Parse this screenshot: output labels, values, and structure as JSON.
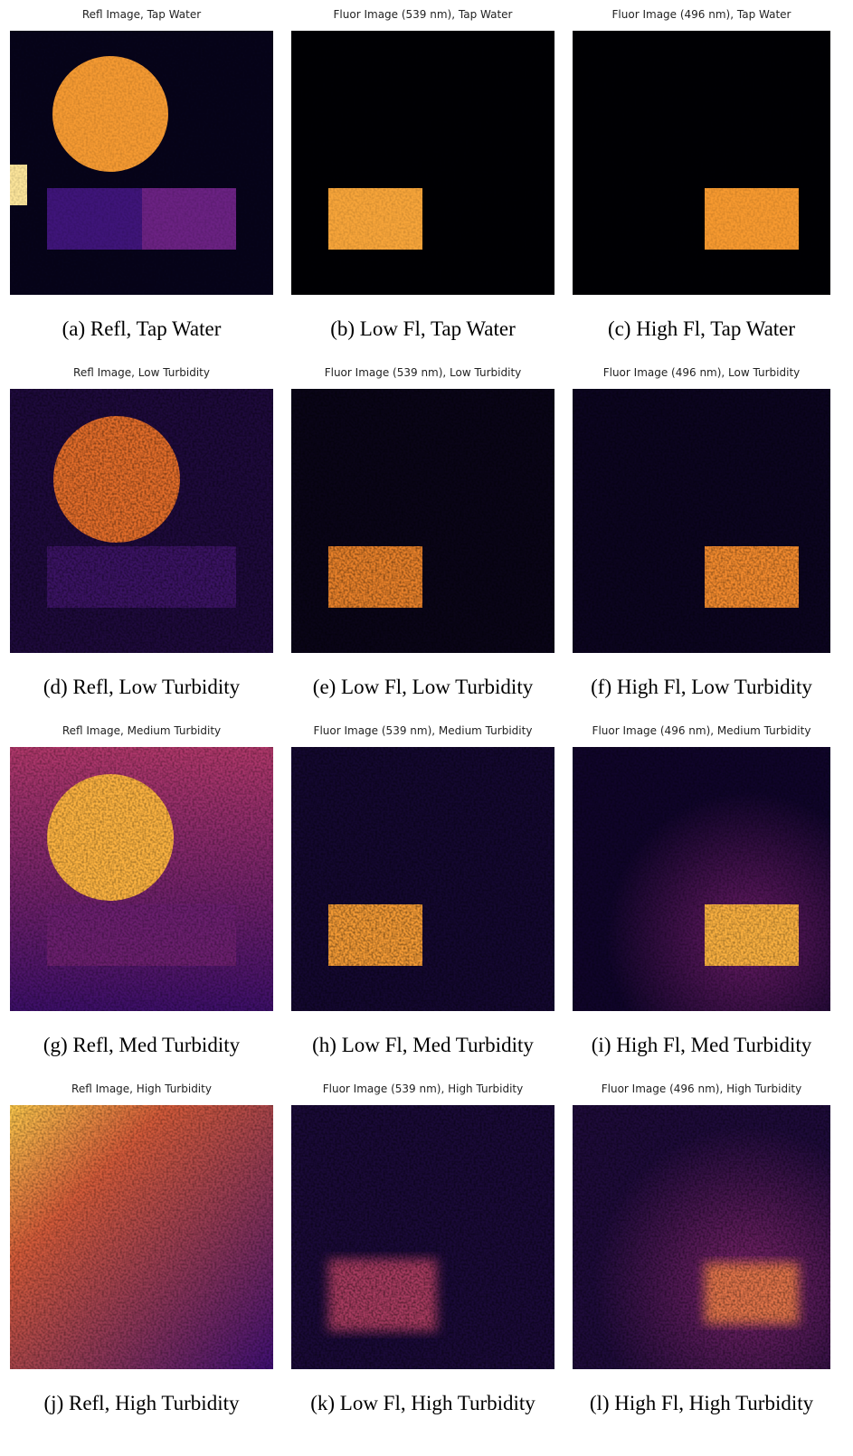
{
  "panels": [
    {
      "title": "Refl Image, Tap Water",
      "caption": "(a) Refl, Tap Water"
    },
    {
      "title": "Fluor Image (539 nm), Tap Water",
      "caption": "(b) Low Fl, Tap Water"
    },
    {
      "title": "Fluor Image (496 nm), Tap Water",
      "caption": "(c) High Fl, Tap Water"
    },
    {
      "title": "Refl Image, Low Turbidity",
      "caption": "(d) Refl, Low Turbidity"
    },
    {
      "title": "Fluor Image (539 nm), Low Turbidity",
      "caption": "(e) Low Fl, Low Turbidity"
    },
    {
      "title": "Fluor Image (496 nm), Low Turbidity",
      "caption": "(f) High Fl, Low Turbidity"
    },
    {
      "title": "Refl Image, Medium Turbidity",
      "caption": "(g) Refl, Med Turbidity"
    },
    {
      "title": "Fluor Image (539 nm), Medium Turbidity",
      "caption": "(h) Low Fl, Med Turbidity"
    },
    {
      "title": "Fluor Image (496 nm), Medium Turbidity",
      "caption": "(i) High Fl, Med Turbidity"
    },
    {
      "title": "Refl Image, High Turbidity",
      "caption": "(j) Refl, High Turbidity"
    },
    {
      "title": "Fluor Image (539 nm), High Turbidity",
      "caption": "(k) Low Fl, High Turbidity"
    },
    {
      "title": "Fluor Image (496 nm), High Turbidity",
      "caption": "(l) High Fl, High Turbidity"
    }
  ]
}
